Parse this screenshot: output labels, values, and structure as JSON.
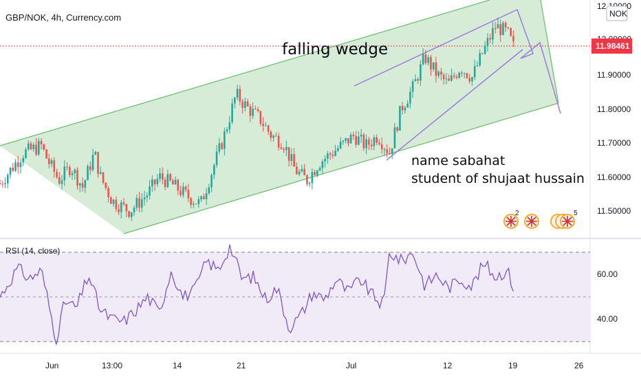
{
  "header": {
    "symbol_title": "GBP/NOK, 4h, Currency.com"
  },
  "annotations": {
    "pattern": "falling wedge",
    "name_line": "name  sabahat",
    "student_line": "student of shujaat hussain"
  },
  "price_axis": {
    "currency": "NOK",
    "current_price": "11.98461",
    "ticks": [
      "12.10000",
      "12.00000",
      "11.90000",
      "11.80000",
      "11.70000",
      "11.60000",
      "11.50000"
    ]
  },
  "events": {
    "group1_count": "2",
    "group2_count": "5"
  },
  "rsi": {
    "title": "RSI (14, close)",
    "ticks": [
      "60.00",
      "40.00"
    ]
  },
  "time_axis": {
    "labels": [
      "Jun",
      "13:00",
      "14",
      "21",
      "Jul",
      "12",
      "19",
      "26"
    ]
  },
  "colors": {
    "up_candle": "#26a69a",
    "down_candle": "#ef5350",
    "channel_fill": "#c8e6c9",
    "channel_line": "#66bb6a",
    "wedge_line": "#9c7ae0",
    "rsi_line": "#7e57c2",
    "rsi_band": "#ede7f6",
    "price_tag": "#f23645"
  },
  "chart_data": {
    "type": "candlestick",
    "title": "GBP/NOK, 4h, Currency.com",
    "ylim": [
      11.42,
      12.11
    ],
    "price_path": [
      {
        "t": 0.0,
        "p": 11.58
      },
      {
        "t": 0.04,
        "p": 11.67
      },
      {
        "t": 0.07,
        "p": 11.69
      },
      {
        "t": 0.08,
        "p": 11.65
      },
      {
        "t": 0.1,
        "p": 11.59
      },
      {
        "t": 0.12,
        "p": 11.63
      },
      {
        "t": 0.14,
        "p": 11.57
      },
      {
        "t": 0.16,
        "p": 11.67
      },
      {
        "t": 0.17,
        "p": 11.6
      },
      {
        "t": 0.19,
        "p": 11.53
      },
      {
        "t": 0.22,
        "p": 11.5
      },
      {
        "t": 0.25,
        "p": 11.55
      },
      {
        "t": 0.27,
        "p": 11.6
      },
      {
        "t": 0.29,
        "p": 11.58
      },
      {
        "t": 0.32,
        "p": 11.54
      },
      {
        "t": 0.34,
        "p": 11.52
      },
      {
        "t": 0.36,
        "p": 11.62
      },
      {
        "t": 0.38,
        "p": 11.72
      },
      {
        "t": 0.4,
        "p": 11.84
      },
      {
        "t": 0.42,
        "p": 11.8
      },
      {
        "t": 0.44,
        "p": 11.77
      },
      {
        "t": 0.46,
        "p": 11.72
      },
      {
        "t": 0.48,
        "p": 11.7
      },
      {
        "t": 0.5,
        "p": 11.62
      },
      {
        "t": 0.52,
        "p": 11.59
      },
      {
        "t": 0.54,
        "p": 11.64
      },
      {
        "t": 0.57,
        "p": 11.68
      },
      {
        "t": 0.6,
        "p": 11.72
      },
      {
        "t": 0.62,
        "p": 11.69
      },
      {
        "t": 0.64,
        "p": 11.72
      },
      {
        "t": 0.66,
        "p": 11.67
      },
      {
        "t": 0.68,
        "p": 11.8
      },
      {
        "t": 0.7,
        "p": 11.86
      },
      {
        "t": 0.72,
        "p": 11.95
      },
      {
        "t": 0.74,
        "p": 11.9
      },
      {
        "t": 0.76,
        "p": 11.87
      },
      {
        "t": 0.78,
        "p": 11.92
      },
      {
        "t": 0.8,
        "p": 11.89
      },
      {
        "t": 0.82,
        "p": 11.97
      },
      {
        "t": 0.84,
        "p": 12.04
      },
      {
        "t": 0.86,
        "p": 12.02
      },
      {
        "t": 0.87,
        "p": 11.98
      }
    ],
    "rsi": {
      "name": "RSI (14, close)",
      "ylim": [
        25,
        78
      ],
      "upper_band": 70,
      "middle": 50,
      "lower_band": 30,
      "path": [
        {
          "t": 0.0,
          "v": 50
        },
        {
          "t": 0.03,
          "v": 63
        },
        {
          "t": 0.05,
          "v": 58
        },
        {
          "t": 0.07,
          "v": 62
        },
        {
          "t": 0.08,
          "v": 50
        },
        {
          "t": 0.095,
          "v": 31
        },
        {
          "t": 0.11,
          "v": 48
        },
        {
          "t": 0.13,
          "v": 45
        },
        {
          "t": 0.15,
          "v": 60
        },
        {
          "t": 0.17,
          "v": 44
        },
        {
          "t": 0.19,
          "v": 40
        },
        {
          "t": 0.21,
          "v": 39
        },
        {
          "t": 0.23,
          "v": 44
        },
        {
          "t": 0.25,
          "v": 50
        },
        {
          "t": 0.27,
          "v": 43
        },
        {
          "t": 0.29,
          "v": 62
        },
        {
          "t": 0.31,
          "v": 50
        },
        {
          "t": 0.33,
          "v": 53
        },
        {
          "t": 0.35,
          "v": 66
        },
        {
          "t": 0.37,
          "v": 62
        },
        {
          "t": 0.39,
          "v": 73
        },
        {
          "t": 0.41,
          "v": 58
        },
        {
          "t": 0.43,
          "v": 59
        },
        {
          "t": 0.45,
          "v": 49
        },
        {
          "t": 0.47,
          "v": 54
        },
        {
          "t": 0.49,
          "v": 36
        },
        {
          "t": 0.51,
          "v": 42
        },
        {
          "t": 0.53,
          "v": 52
        },
        {
          "t": 0.55,
          "v": 49
        },
        {
          "t": 0.57,
          "v": 58
        },
        {
          "t": 0.59,
          "v": 52
        },
        {
          "t": 0.61,
          "v": 58
        },
        {
          "t": 0.63,
          "v": 51
        },
        {
          "t": 0.65,
          "v": 46
        },
        {
          "t": 0.66,
          "v": 70
        },
        {
          "t": 0.68,
          "v": 66
        },
        {
          "t": 0.7,
          "v": 70
        },
        {
          "t": 0.72,
          "v": 55
        },
        {
          "t": 0.74,
          "v": 60
        },
        {
          "t": 0.76,
          "v": 54
        },
        {
          "t": 0.78,
          "v": 58
        },
        {
          "t": 0.8,
          "v": 55
        },
        {
          "t": 0.82,
          "v": 65
        },
        {
          "t": 0.84,
          "v": 59
        },
        {
          "t": 0.86,
          "v": 62
        },
        {
          "t": 0.87,
          "v": 54
        }
      ]
    },
    "channel": {
      "upper": [
        {
          "t": 0.0,
          "p": 11.7
        },
        {
          "t": 1.0,
          "p": 12.12
        }
      ],
      "lower": [
        {
          "t": 0.22,
          "p": 11.45
        },
        {
          "t": 1.0,
          "p": 11.81
        }
      ]
    }
  }
}
